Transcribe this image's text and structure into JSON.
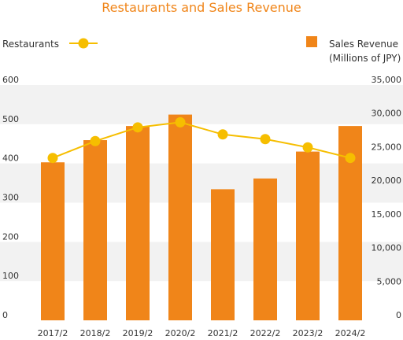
{
  "chart_data": {
    "type": "bar",
    "title": "Restaurants and Sales Revenue",
    "categories": [
      "2017/2",
      "2018/2",
      "2019/2",
      "2020/2",
      "2021/2",
      "2022/2",
      "2023/2",
      "2024/2"
    ],
    "series": [
      {
        "name": "Sales Revenue",
        "unit": "(Millions of JPY)",
        "type": "bar",
        "axis": "right",
        "color": "#f08519",
        "values": [
          23500,
          26800,
          28900,
          30600,
          19500,
          21100,
          25100,
          28900
        ]
      },
      {
        "name": "Restaurants",
        "type": "line",
        "axis": "left",
        "color": "#f6be00",
        "values": [
          414,
          457,
          492,
          505,
          474,
          462,
          441,
          414
        ]
      }
    ],
    "y_left": {
      "ylim": [
        0,
        600
      ],
      "ticks": [
        0,
        100,
        200,
        300,
        400,
        500,
        600
      ]
    },
    "y_right": {
      "ylim": [
        0,
        35000
      ],
      "ticks": [
        0,
        5000,
        10000,
        15000,
        20000,
        25000,
        30000,
        35000
      ]
    },
    "title_color": "#f08519",
    "grid": "alternating horizontal bands",
    "legend": {
      "placement": "top"
    }
  }
}
